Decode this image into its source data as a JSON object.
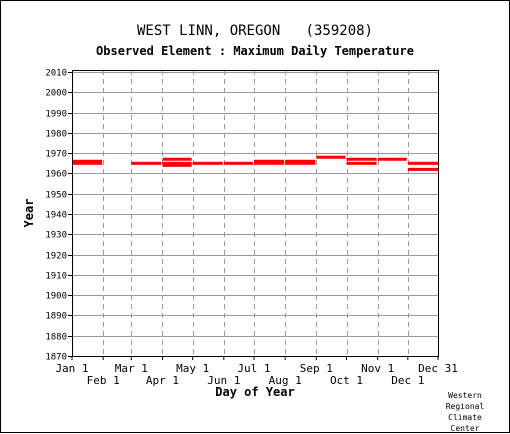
{
  "title": "WEST LINN, OREGON   (359208)",
  "subtitle": "Observed Element : Maximum Daily Temperature",
  "footer": [
    "Western",
    "Regional",
    "Climate",
    "Center"
  ],
  "colors": {
    "data": "#ff0000",
    "grid_v": "#999999",
    "grid_h": "#999999",
    "frame": "#000000"
  },
  "chart_data": {
    "type": "bar",
    "title": "WEST LINN, OREGON   (359208)",
    "subtitle": "Observed Element : Maximum Daily Temperature",
    "xlabel": "Day of Year",
    "ylabel": "Year",
    "ylim": [
      1870,
      2011
    ],
    "xlim": [
      1,
      365
    ],
    "grid": true,
    "y_ticks": [
      2010,
      2000,
      1990,
      1980,
      1970,
      1960,
      1950,
      1940,
      1930,
      1920,
      1910,
      1900,
      1890,
      1880,
      1870
    ],
    "x_ticks_top": [
      {
        "label": "Jan 1",
        "day": 1
      },
      {
        "label": "Mar 1",
        "day": 60
      },
      {
        "label": "May 1",
        "day": 121
      },
      {
        "label": "Jul 1",
        "day": 182
      },
      {
        "label": "Sep 1",
        "day": 244
      },
      {
        "label": "Nov 1",
        "day": 305
      },
      {
        "label": "Dec 31",
        "day": 365
      }
    ],
    "x_ticks_bottom": [
      {
        "label": "Feb 1",
        "day": 32
      },
      {
        "label": "Apr 1",
        "day": 91
      },
      {
        "label": "Jun 1",
        "day": 152
      },
      {
        "label": "Aug 1",
        "day": 213
      },
      {
        "label": "Oct 1",
        "day": 274
      },
      {
        "label": "Dec 1",
        "day": 335
      }
    ],
    "series": [
      {
        "segments": [
          {
            "start_day": 1,
            "end_day": 31,
            "year": 1966
          },
          {
            "start_day": 1,
            "end_day": 31,
            "year": 1965
          },
          {
            "start_day": 60,
            "end_day": 90,
            "year": 1965
          },
          {
            "start_day": 91,
            "end_day": 120,
            "year": 1967
          },
          {
            "start_day": 91,
            "end_day": 120,
            "year": 1965
          },
          {
            "start_day": 91,
            "end_day": 120,
            "year": 1964
          },
          {
            "start_day": 121,
            "end_day": 151,
            "year": 1965
          },
          {
            "start_day": 152,
            "end_day": 181,
            "year": 1965
          },
          {
            "start_day": 182,
            "end_day": 212,
            "year": 1966
          },
          {
            "start_day": 182,
            "end_day": 212,
            "year": 1965
          },
          {
            "start_day": 213,
            "end_day": 243,
            "year": 1966
          },
          {
            "start_day": 213,
            "end_day": 243,
            "year": 1965
          },
          {
            "start_day": 244,
            "end_day": 273,
            "year": 1968
          },
          {
            "start_day": 274,
            "end_day": 304,
            "year": 1967
          },
          {
            "start_day": 274,
            "end_day": 304,
            "year": 1965
          },
          {
            "start_day": 305,
            "end_day": 334,
            "year": 1967
          },
          {
            "start_day": 335,
            "end_day": 365,
            "year": 1965
          },
          {
            "start_day": 335,
            "end_day": 365,
            "year": 1962
          }
        ]
      }
    ]
  }
}
